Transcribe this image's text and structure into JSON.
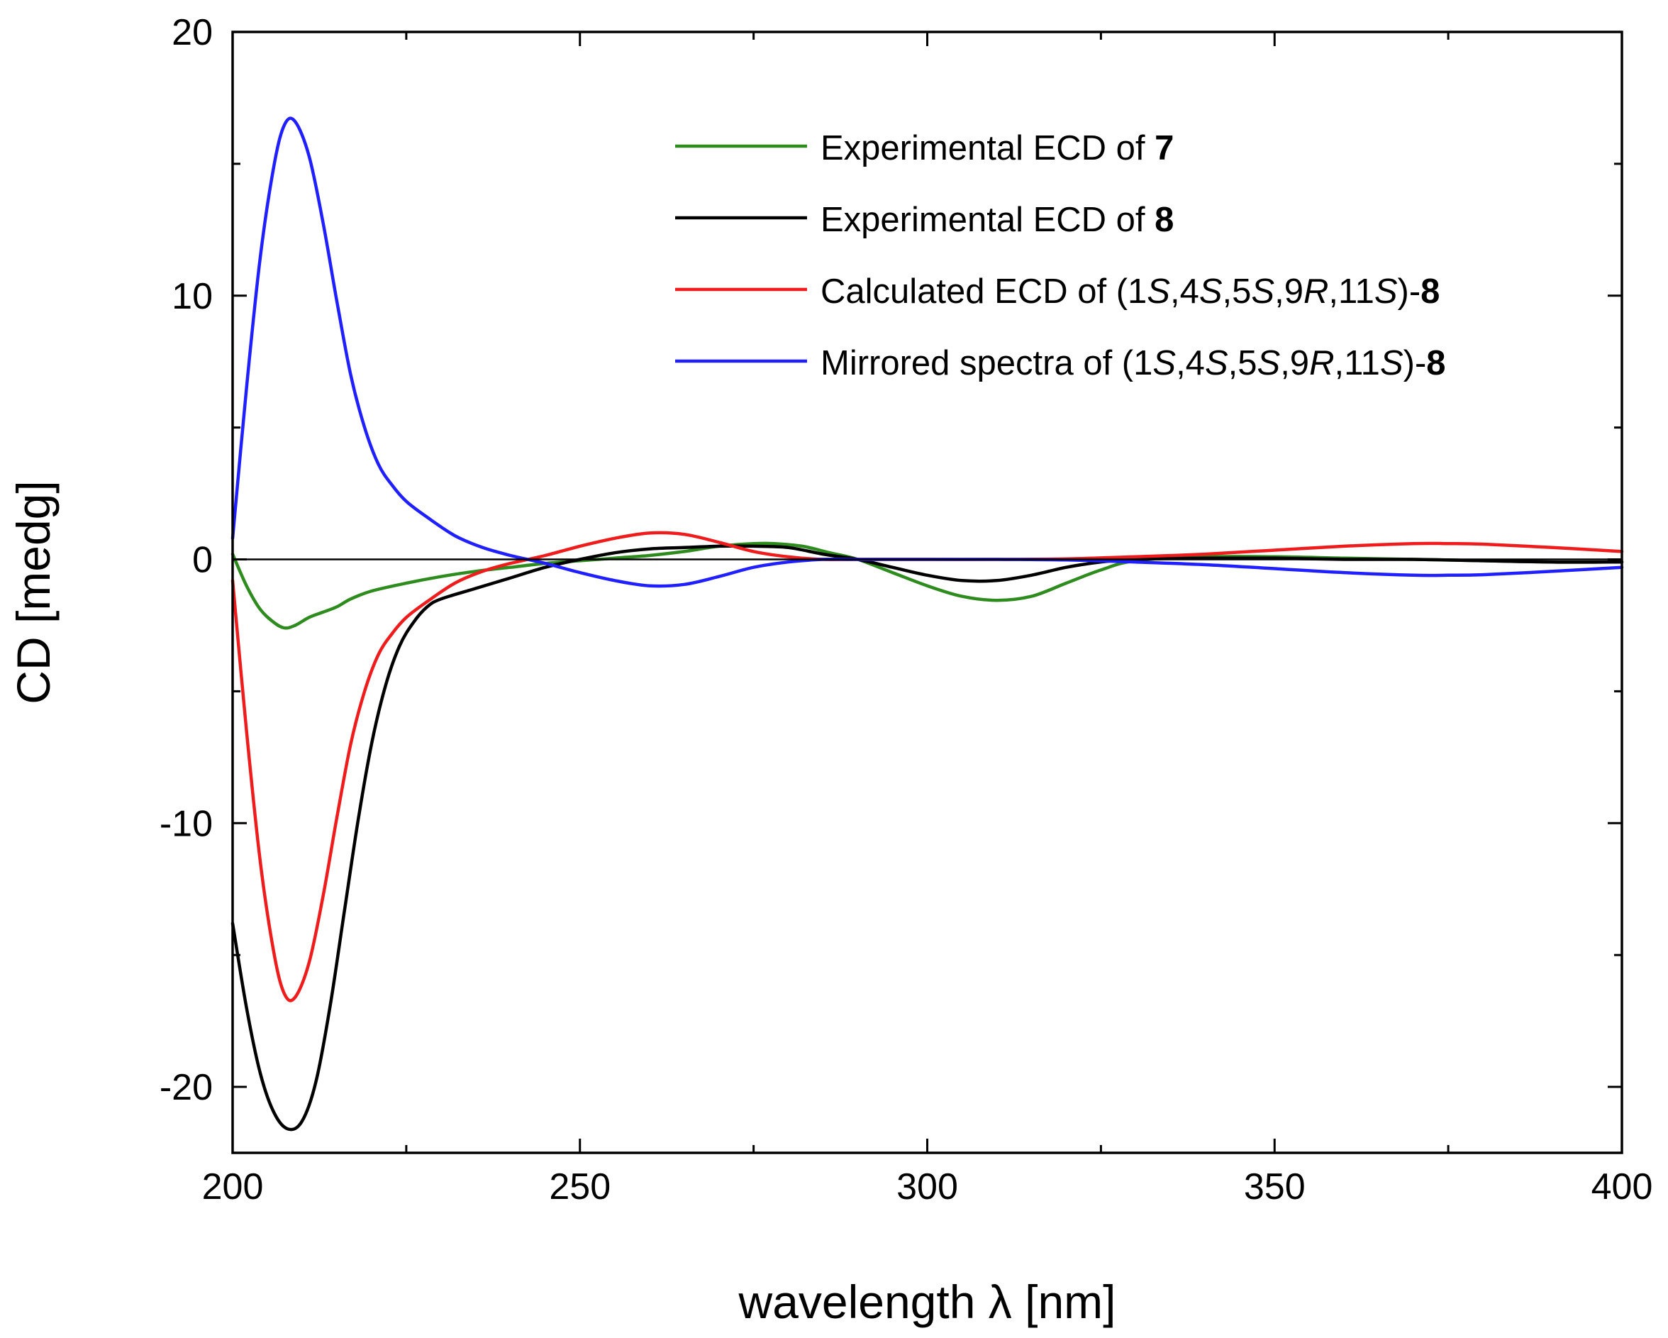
{
  "chart_data": {
    "type": "line",
    "title": "",
    "xlabel": "wavelength λ [nm]",
    "ylabel": "CD [medg]",
    "xlim": [
      200,
      400
    ],
    "ylim": [
      -22.5,
      20
    ],
    "x_ticks": [
      200,
      250,
      300,
      350,
      400
    ],
    "x_tick_labels": [
      "200",
      "250",
      "300",
      "350",
      "400"
    ],
    "x_minor_ticks": [
      225,
      275,
      325,
      375
    ],
    "y_ticks": [
      -20,
      -10,
      0,
      10,
      20
    ],
    "y_tick_labels": [
      "-20",
      "-10",
      "0",
      "10",
      "20"
    ],
    "y_minor_ticks": [
      -15,
      -5,
      5,
      15
    ],
    "zero_line": true,
    "grid": false,
    "legend_position": "top-right",
    "series": [
      {
        "name": "Experimental ECD of 7",
        "color": "#2e8b1e",
        "points": [
          [
            200,
            0.2
          ],
          [
            202,
            -1.0
          ],
          [
            204,
            -1.9
          ],
          [
            206,
            -2.4
          ],
          [
            207.5,
            -2.6
          ],
          [
            209,
            -2.5
          ],
          [
            211,
            -2.2
          ],
          [
            213,
            -2.0
          ],
          [
            215,
            -1.8
          ],
          [
            217,
            -1.5
          ],
          [
            220,
            -1.2
          ],
          [
            225,
            -0.9
          ],
          [
            230,
            -0.65
          ],
          [
            235,
            -0.45
          ],
          [
            240,
            -0.3
          ],
          [
            245,
            -0.15
          ],
          [
            250,
            -0.05
          ],
          [
            255,
            0.05
          ],
          [
            260,
            0.15
          ],
          [
            265,
            0.3
          ],
          [
            270,
            0.5
          ],
          [
            275,
            0.6
          ],
          [
            278,
            0.6
          ],
          [
            282,
            0.5
          ],
          [
            286,
            0.25
          ],
          [
            290,
            0.0
          ],
          [
            295,
            -0.5
          ],
          [
            300,
            -1.0
          ],
          [
            305,
            -1.4
          ],
          [
            310,
            -1.55
          ],
          [
            315,
            -1.4
          ],
          [
            320,
            -0.9
          ],
          [
            325,
            -0.4
          ],
          [
            330,
            -0.05
          ],
          [
            340,
            0.1
          ],
          [
            350,
            0.1
          ],
          [
            360,
            0.05
          ],
          [
            370,
            0.0
          ],
          [
            380,
            -0.05
          ],
          [
            390,
            -0.1
          ],
          [
            400,
            -0.1
          ]
        ],
        "legend_parts": [
          {
            "text": "Experimental ECD of ",
            "style": "normal"
          },
          {
            "text": "7",
            "style": "bold"
          }
        ]
      },
      {
        "name": "Experimental ECD of 8",
        "color": "#000000",
        "points": [
          [
            200,
            -13.8
          ],
          [
            202,
            -17.0
          ],
          [
            204,
            -19.5
          ],
          [
            206,
            -21.0
          ],
          [
            208,
            -21.6
          ],
          [
            210,
            -21.3
          ],
          [
            212,
            -19.8
          ],
          [
            214,
            -17.0
          ],
          [
            216,
            -13.5
          ],
          [
            218,
            -10.0
          ],
          [
            220,
            -7.0
          ],
          [
            222,
            -4.8
          ],
          [
            224,
            -3.3
          ],
          [
            226,
            -2.4
          ],
          [
            228,
            -1.8
          ],
          [
            230,
            -1.5
          ],
          [
            235,
            -1.1
          ],
          [
            240,
            -0.7
          ],
          [
            245,
            -0.3
          ],
          [
            250,
            0.0
          ],
          [
            255,
            0.25
          ],
          [
            260,
            0.4
          ],
          [
            265,
            0.45
          ],
          [
            270,
            0.5
          ],
          [
            275,
            0.5
          ],
          [
            280,
            0.45
          ],
          [
            285,
            0.2
          ],
          [
            290,
            0.0
          ],
          [
            295,
            -0.3
          ],
          [
            300,
            -0.6
          ],
          [
            305,
            -0.8
          ],
          [
            310,
            -0.8
          ],
          [
            315,
            -0.6
          ],
          [
            320,
            -0.3
          ],
          [
            325,
            -0.1
          ],
          [
            330,
            0.0
          ],
          [
            340,
            0.05
          ],
          [
            350,
            0.05
          ],
          [
            360,
            0.0
          ],
          [
            370,
            0.0
          ],
          [
            380,
            -0.05
          ],
          [
            390,
            -0.1
          ],
          [
            400,
            -0.1
          ]
        ],
        "legend_parts": [
          {
            "text": "Experimental ECD of ",
            "style": "normal"
          },
          {
            "text": "8",
            "style": "bold"
          }
        ]
      },
      {
        "name": "Calculated ECD of (1S,4S,5S,9R,11S)-8",
        "color": "#ee1c1c",
        "points": [
          [
            200,
            -0.8
          ],
          [
            202,
            -6.5
          ],
          [
            204,
            -11.5
          ],
          [
            206,
            -15.0
          ],
          [
            207.5,
            -16.5
          ],
          [
            209,
            -16.6
          ],
          [
            211,
            -15.3
          ],
          [
            213,
            -12.8
          ],
          [
            215,
            -9.8
          ],
          [
            217,
            -7.0
          ],
          [
            219,
            -5.0
          ],
          [
            221,
            -3.6
          ],
          [
            223,
            -2.8
          ],
          [
            225,
            -2.2
          ],
          [
            228,
            -1.6
          ],
          [
            232,
            -0.9
          ],
          [
            236,
            -0.45
          ],
          [
            240,
            -0.15
          ],
          [
            245,
            0.15
          ],
          [
            250,
            0.5
          ],
          [
            255,
            0.8
          ],
          [
            260,
            1.0
          ],
          [
            265,
            0.95
          ],
          [
            270,
            0.65
          ],
          [
            275,
            0.3
          ],
          [
            280,
            0.1
          ],
          [
            285,
            0.0
          ],
          [
            290,
            0.0
          ],
          [
            300,
            0.0
          ],
          [
            310,
            0.0
          ],
          [
            320,
            0.02
          ],
          [
            330,
            0.1
          ],
          [
            340,
            0.2
          ],
          [
            350,
            0.35
          ],
          [
            360,
            0.5
          ],
          [
            370,
            0.6
          ],
          [
            375,
            0.6
          ],
          [
            380,
            0.58
          ],
          [
            390,
            0.45
          ],
          [
            400,
            0.3
          ]
        ],
        "legend_parts": [
          {
            "text": "Calculated ECD of (1",
            "style": "normal"
          },
          {
            "text": "S",
            "style": "italic"
          },
          {
            "text": ",4",
            "style": "normal"
          },
          {
            "text": "S",
            "style": "italic"
          },
          {
            "text": ",5",
            "style": "normal"
          },
          {
            "text": "S",
            "style": "italic"
          },
          {
            "text": ",9",
            "style": "normal"
          },
          {
            "text": "R",
            "style": "italic"
          },
          {
            "text": ",11",
            "style": "normal"
          },
          {
            "text": "S",
            "style": "italic"
          },
          {
            "text": ")-",
            "style": "normal"
          },
          {
            "text": "8",
            "style": "bold"
          }
        ]
      },
      {
        "name": "Mirrored spectra of (1S,4S,5S,9R,11S)-8",
        "color": "#1f1fff",
        "points": [
          [
            200,
            0.8
          ],
          [
            202,
            6.5
          ],
          [
            204,
            11.5
          ],
          [
            206,
            15.0
          ],
          [
            207.5,
            16.5
          ],
          [
            209,
            16.6
          ],
          [
            211,
            15.3
          ],
          [
            213,
            12.8
          ],
          [
            215,
            9.8
          ],
          [
            217,
            7.0
          ],
          [
            219,
            5.0
          ],
          [
            221,
            3.6
          ],
          [
            223,
            2.8
          ],
          [
            225,
            2.2
          ],
          [
            228,
            1.6
          ],
          [
            232,
            0.9
          ],
          [
            236,
            0.45
          ],
          [
            240,
            0.15
          ],
          [
            245,
            -0.15
          ],
          [
            250,
            -0.5
          ],
          [
            255,
            -0.8
          ],
          [
            260,
            -1.0
          ],
          [
            265,
            -0.95
          ],
          [
            270,
            -0.65
          ],
          [
            275,
            -0.3
          ],
          [
            280,
            -0.1
          ],
          [
            285,
            0.0
          ],
          [
            290,
            0.0
          ],
          [
            300,
            0.0
          ],
          [
            310,
            0.0
          ],
          [
            320,
            -0.02
          ],
          [
            330,
            -0.1
          ],
          [
            340,
            -0.2
          ],
          [
            350,
            -0.35
          ],
          [
            360,
            -0.5
          ],
          [
            370,
            -0.6
          ],
          [
            375,
            -0.6
          ],
          [
            380,
            -0.58
          ],
          [
            390,
            -0.45
          ],
          [
            400,
            -0.3
          ]
        ],
        "legend_parts": [
          {
            "text": "Mirrored spectra of (1",
            "style": "normal"
          },
          {
            "text": "S",
            "style": "italic"
          },
          {
            "text": ",4",
            "style": "normal"
          },
          {
            "text": "S",
            "style": "italic"
          },
          {
            "text": ",5",
            "style": "normal"
          },
          {
            "text": "S",
            "style": "italic"
          },
          {
            "text": ",9",
            "style": "normal"
          },
          {
            "text": "R",
            "style": "italic"
          },
          {
            "text": ",11",
            "style": "normal"
          },
          {
            "text": "S",
            "style": "italic"
          },
          {
            "text": ")-",
            "style": "normal"
          },
          {
            "text": "8",
            "style": "bold"
          }
        ]
      }
    ]
  }
}
